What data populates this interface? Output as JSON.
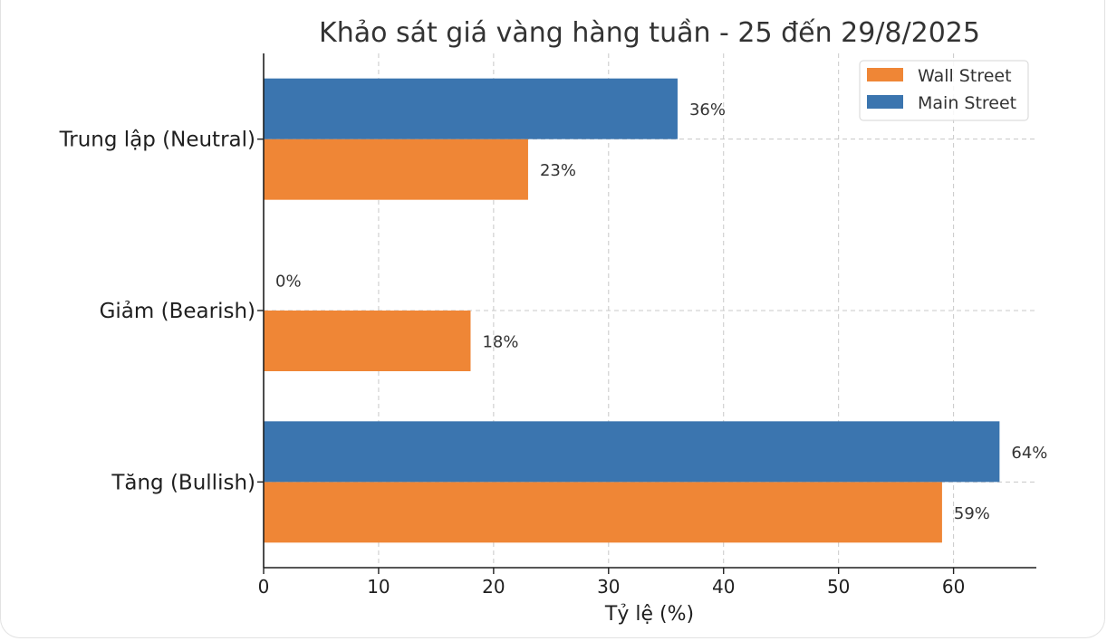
{
  "chart_data": {
    "type": "bar",
    "orientation": "horizontal",
    "title": "Khảo sát giá vàng hàng tuần - 25 đến 29/8/2025",
    "xlabel": "Tỷ lệ (%)",
    "ylabel": "",
    "categories": [
      "Tăng (Bullish)",
      "Giảm (Bearish)",
      "Trung lập (Neutral)"
    ],
    "series": [
      {
        "name": "Wall Street",
        "color": "#ef8636",
        "values": [
          59,
          18,
          23
        ],
        "labels": [
          "59%",
          "18%",
          "23%"
        ]
      },
      {
        "name": "Main Street",
        "color": "#3b75af",
        "values": [
          64,
          0,
          36
        ],
        "labels": [
          "64%",
          "0%",
          "36%"
        ]
      }
    ],
    "xlim": [
      0,
      67.2
    ],
    "xticks": [
      0,
      10,
      20,
      30,
      40,
      50,
      60
    ],
    "xtick_labels": [
      "0",
      "10",
      "20",
      "30",
      "40",
      "50",
      "60"
    ],
    "grid": true,
    "legend_position": "top-right"
  }
}
